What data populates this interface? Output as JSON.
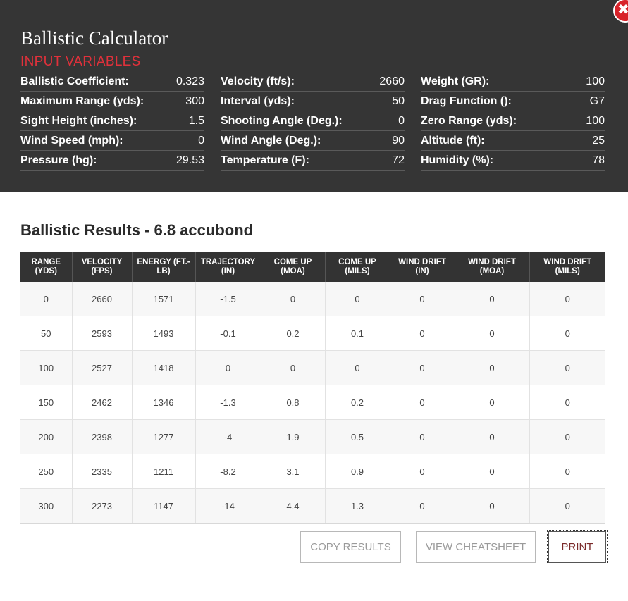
{
  "header": {
    "title": "Ballistic Calculator",
    "section_title": "INPUT VARIABLES",
    "close_label": "✖"
  },
  "inputs": [
    {
      "label": "Ballistic Coefficient:",
      "value": "0.323"
    },
    {
      "label": "Velocity (ft/s):",
      "value": "2660"
    },
    {
      "label": "Weight (GR):",
      "value": "100"
    },
    {
      "label": "Maximum Range (yds):",
      "value": "300"
    },
    {
      "label": "Interval (yds):",
      "value": "50"
    },
    {
      "label": "Drag Function ():",
      "value": "G7"
    },
    {
      "label": "Sight Height (inches):",
      "value": "1.5"
    },
    {
      "label": "Shooting Angle (Deg.):",
      "value": "0"
    },
    {
      "label": "Zero Range (yds):",
      "value": "100"
    },
    {
      "label": "Wind Speed (mph):",
      "value": "0"
    },
    {
      "label": "Wind Angle (Deg.):",
      "value": "90"
    },
    {
      "label": "Altitude (ft):",
      "value": "25"
    },
    {
      "label": "Pressure (hg):",
      "value": "29.53"
    },
    {
      "label": "Temperature (F):",
      "value": "72"
    },
    {
      "label": "Humidity (%):",
      "value": "78"
    }
  ],
  "results": {
    "title": "Ballistic Results - 6.8 accubond",
    "columns": [
      "RANGE (YDS)",
      "VELOCITY (FPS)",
      "ENERGY (FT.-LB)",
      "TRAJECTORY (IN)",
      "COME UP (MOA)",
      "COME UP (MILS)",
      "WIND DRIFT (IN)",
      "WIND DRIFT (MOA)",
      "WIND DRIFT (MILS)"
    ],
    "rows": [
      [
        "0",
        "2660",
        "1571",
        "-1.5",
        "0",
        "0",
        "0",
        "0",
        "0"
      ],
      [
        "50",
        "2593",
        "1493",
        "-0.1",
        "0.2",
        "0.1",
        "0",
        "0",
        "0"
      ],
      [
        "100",
        "2527",
        "1418",
        "0",
        "0",
        "0",
        "0",
        "0",
        "0"
      ],
      [
        "150",
        "2462",
        "1346",
        "-1.3",
        "0.8",
        "0.2",
        "0",
        "0",
        "0"
      ],
      [
        "200",
        "2398",
        "1277",
        "-4",
        "1.9",
        "0.5",
        "0",
        "0",
        "0"
      ],
      [
        "250",
        "2335",
        "1211",
        "-8.2",
        "3.1",
        "0.9",
        "0",
        "0",
        "0"
      ],
      [
        "300",
        "2273",
        "1147",
        "-14",
        "4.4",
        "1.3",
        "0",
        "0",
        "0"
      ]
    ]
  },
  "actions": {
    "copy_label": "COPY RESULTS",
    "cheatsheet_label": "VIEW CHEATSHEET",
    "print_label": "PRINT"
  },
  "colors": {
    "header_bg": "#353535",
    "accent_red": "#e0313b",
    "table_header_bg": "#333333"
  }
}
